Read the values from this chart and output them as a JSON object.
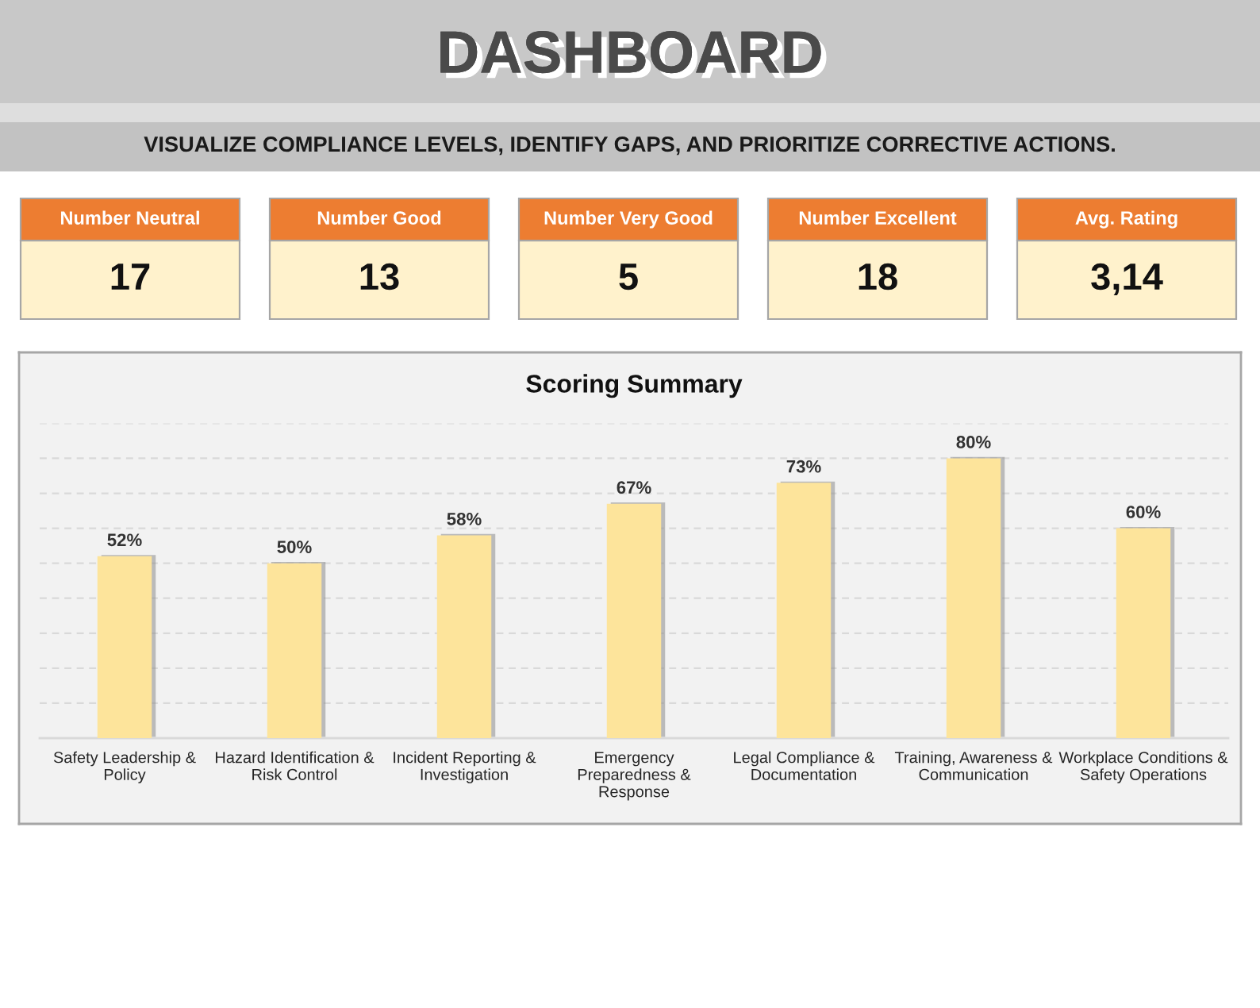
{
  "chart_data": [
    {
      "type": "other",
      "title": "DASHBOARD",
      "subtitle": "VISUALIZE COMPLIANCE LEVELS, IDENTIFY GAPS, AND PRIORITIZE CORRECTIVE ACTIONS."
    },
    {
      "type": "other",
      "title": "Number Neutral",
      "annotations": [
        "17"
      ]
    },
    {
      "type": "other",
      "title": "Number Good",
      "annotations": [
        "13"
      ]
    },
    {
      "type": "other",
      "title": "Number Very Good",
      "annotations": [
        "5"
      ]
    },
    {
      "type": "other",
      "title": "Number Excellent",
      "annotations": [
        "18"
      ]
    },
    {
      "type": "other",
      "title": "Avg. Rating",
      "annotations": [
        "3,14"
      ]
    },
    {
      "type": "bar",
      "title": "Scoring Summary",
      "categories": [
        "Safety Leadership & Policy",
        "Hazard Identification & Risk Control",
        "Incident Reporting & Investigation",
        "Emergency Preparedness & Response",
        "Legal Compliance & Documentation",
        "Training, Awareness & Communication",
        "Workplace Conditions & Safety Operations"
      ],
      "values": [
        52,
        50,
        58,
        67,
        73,
        80,
        60
      ],
      "value_labels": [
        "52%",
        "50%",
        "58%",
        "67%",
        "73%",
        "80%",
        "60%"
      ],
      "color": "#fde49b",
      "ylim": [
        0,
        90
      ],
      "yticks": [
        0,
        10,
        20,
        30,
        40,
        50,
        60,
        70,
        80,
        90
      ],
      "tick_labels": "x",
      "grid": "y"
    }
  ]
}
